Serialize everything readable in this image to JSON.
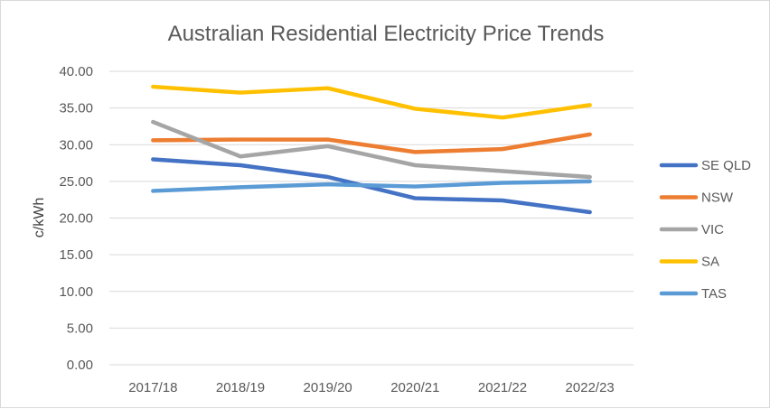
{
  "chart_data": {
    "type": "line",
    "title": "Australian Residential Electricity Price Trends",
    "xlabel": "",
    "ylabel": "c/kWh",
    "ylim": [
      0,
      40
    ],
    "ytick_step": 5,
    "ytick_labels": [
      "0.00",
      "5.00",
      "10.00",
      "15.00",
      "20.00",
      "25.00",
      "30.00",
      "35.00",
      "40.00"
    ],
    "grid": true,
    "legend_position": "right",
    "categories": [
      "2017/18",
      "2018/19",
      "2019/20",
      "2020/21",
      "2021/22",
      "2022/23"
    ],
    "series": [
      {
        "name": "SE QLD",
        "color": "#4472c4",
        "values": [
          28.0,
          27.2,
          25.6,
          22.7,
          22.4,
          20.8
        ]
      },
      {
        "name": "NSW",
        "color": "#ed7d31",
        "values": [
          30.6,
          30.7,
          30.7,
          29.0,
          29.4,
          31.4
        ]
      },
      {
        "name": "VIC",
        "color": "#a5a5a5",
        "values": [
          33.1,
          28.4,
          29.8,
          27.2,
          26.4,
          25.6
        ]
      },
      {
        "name": "SA",
        "color": "#ffc000",
        "values": [
          37.9,
          37.1,
          37.7,
          34.9,
          33.7,
          35.4
        ]
      },
      {
        "name": "TAS",
        "color": "#5b9bd5",
        "values": [
          23.7,
          24.2,
          24.6,
          24.3,
          24.8,
          25.0
        ]
      }
    ]
  }
}
